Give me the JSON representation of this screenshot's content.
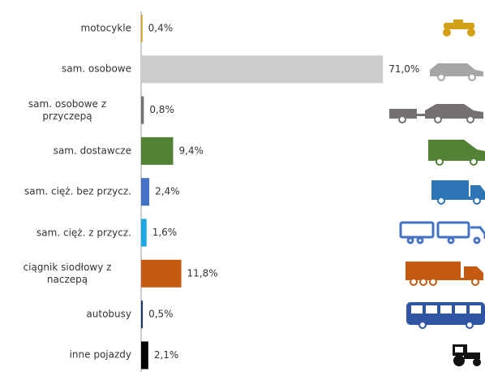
{
  "chart_data": {
    "type": "bar",
    "orientation": "horizontal",
    "categories": [
      "motocykle",
      "sam. osobowe",
      "sam. osobowe z przyczepą",
      "sam. dostawcze",
      "sam. cięż. bez przycz.",
      "sam. cięż. z przycz.",
      "ciągnik siodłowy z naczepą",
      "autobusy",
      "inne pojazdy"
    ],
    "values": [
      0.4,
      71.0,
      0.8,
      9.4,
      2.4,
      1.6,
      11.8,
      0.5,
      2.1
    ],
    "value_labels": [
      "0,4%",
      "71,0%",
      "0,8%",
      "9,4%",
      "2,4%",
      "1,6%",
      "11,8%",
      "0,5%",
      "2,1%"
    ],
    "colors": [
      "#d4a017",
      "#cccccc",
      "#767171",
      "#548235",
      "#4472c4",
      "#1ca7e4",
      "#c55a11",
      "#203864",
      "#000000"
    ]
  }
}
